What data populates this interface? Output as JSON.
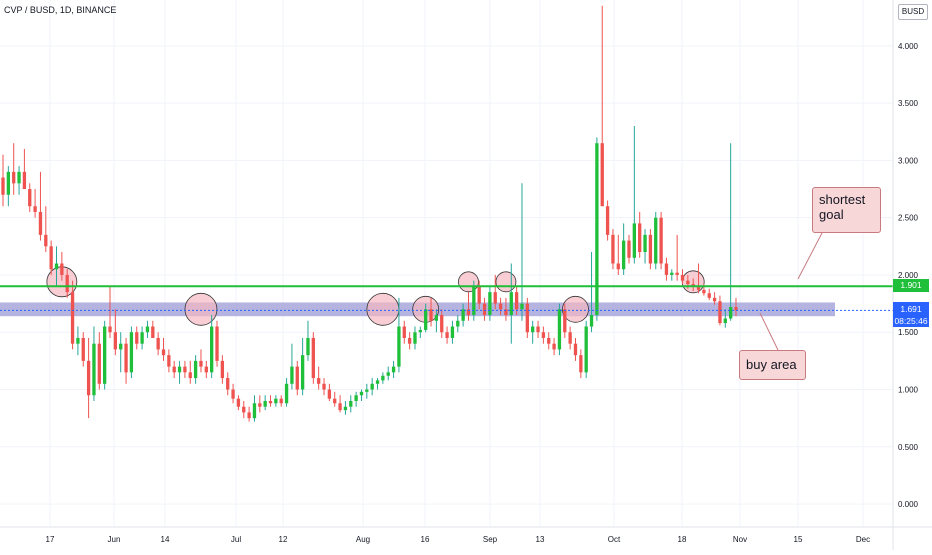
{
  "header": {
    "title": "CVP / BUSD, 1D, BINANCE",
    "currency": "BUSD"
  },
  "price_tags": {
    "resistance": "1.901",
    "last_price": "1.691",
    "countdown": "08:25:46"
  },
  "annotations": {
    "goal": "shortest\ngoal",
    "buy": "buy area"
  },
  "colors": {
    "up": "#26a69a",
    "up_body": "#1fbf3a",
    "down": "#ef5350",
    "resistance": "#1fbf3a",
    "zone": "#9c99d6",
    "circle_fill": "#f5b8c0",
    "callout": "#f8d7d9"
  },
  "chart_data": {
    "type": "candlestick",
    "title": "CVP / BUSD, 1D, BINANCE",
    "ylim": [
      -0.2,
      4.4
    ],
    "yticks": [
      "0.000",
      "0.500",
      "1.000",
      "1.500",
      "2.000",
      "2.500",
      "3.000",
      "3.500",
      "4.000"
    ],
    "xticks": [
      "17",
      "Jun",
      "14",
      "Jul",
      "12",
      "Aug",
      "16",
      "Sep",
      "13",
      "Oct",
      "18",
      "Nov",
      "15",
      "Dec"
    ],
    "resistance_level": 1.901,
    "buy_zone": [
      1.64,
      1.76
    ],
    "last_price": 1.691,
    "candles_ohlc": [
      [
        2.85,
        3.05,
        2.6,
        2.7
      ],
      [
        2.7,
        2.95,
        2.6,
        2.9
      ],
      [
        2.9,
        3.15,
        2.7,
        2.8
      ],
      [
        2.8,
        2.95,
        2.7,
        2.9
      ],
      [
        2.9,
        3.1,
        2.75,
        2.75
      ],
      [
        2.75,
        2.8,
        2.55,
        2.6
      ],
      [
        2.6,
        2.75,
        2.5,
        2.55
      ],
      [
        2.55,
        2.9,
        2.3,
        2.35
      ],
      [
        2.35,
        2.6,
        2.2,
        2.25
      ],
      [
        2.25,
        2.3,
        2.0,
        2.05
      ],
      [
        2.05,
        2.25,
        1.9,
        2.1
      ],
      [
        2.1,
        2.2,
        1.95,
        2.0
      ],
      [
        2.0,
        2.05,
        1.8,
        1.85
      ],
      [
        1.85,
        1.95,
        1.35,
        1.4
      ],
      [
        1.4,
        1.55,
        1.3,
        1.45
      ],
      [
        1.45,
        1.5,
        1.2,
        1.25
      ],
      [
        1.25,
        1.45,
        0.75,
        0.95
      ],
      [
        0.95,
        1.55,
        0.9,
        1.4
      ],
      [
        1.4,
        1.5,
        1.0,
        1.05
      ],
      [
        1.05,
        1.6,
        1.0,
        1.55
      ],
      [
        1.55,
        1.9,
        1.45,
        1.5
      ],
      [
        1.5,
        1.7,
        1.3,
        1.35
      ],
      [
        1.35,
        1.5,
        1.15,
        1.4
      ],
      [
        1.4,
        1.45,
        1.05,
        1.15
      ],
      [
        1.15,
        1.55,
        1.1,
        1.5
      ],
      [
        1.5,
        1.55,
        1.35,
        1.4
      ],
      [
        1.4,
        1.55,
        1.35,
        1.5
      ],
      [
        1.5,
        1.6,
        1.45,
        1.55
      ],
      [
        1.55,
        1.6,
        1.45,
        1.45
      ],
      [
        1.45,
        1.5,
        1.3,
        1.35
      ],
      [
        1.35,
        1.45,
        1.25,
        1.3
      ],
      [
        1.3,
        1.35,
        1.15,
        1.2
      ],
      [
        1.2,
        1.25,
        1.1,
        1.15
      ],
      [
        1.15,
        1.25,
        1.05,
        1.2
      ],
      [
        1.2,
        1.25,
        1.1,
        1.15
      ],
      [
        1.15,
        1.25,
        1.05,
        1.1
      ],
      [
        1.1,
        1.3,
        1.05,
        1.25
      ],
      [
        1.25,
        1.35,
        1.15,
        1.2
      ],
      [
        1.2,
        1.25,
        1.1,
        1.15
      ],
      [
        1.15,
        1.65,
        1.1,
        1.55
      ],
      [
        1.55,
        1.6,
        1.2,
        1.25
      ],
      [
        1.25,
        1.3,
        1.05,
        1.1
      ],
      [
        1.1,
        1.15,
        0.95,
        1.0
      ],
      [
        1.0,
        1.05,
        0.88,
        0.92
      ],
      [
        0.92,
        0.95,
        0.82,
        0.85
      ],
      [
        0.85,
        0.9,
        0.75,
        0.8
      ],
      [
        0.8,
        0.85,
        0.72,
        0.75
      ],
      [
        0.75,
        0.95,
        0.72,
        0.88
      ],
      [
        0.88,
        0.95,
        0.8,
        0.85
      ],
      [
        0.85,
        0.95,
        0.82,
        0.9
      ],
      [
        0.9,
        0.95,
        0.85,
        0.88
      ],
      [
        0.88,
        0.95,
        0.85,
        0.92
      ],
      [
        0.92,
        0.95,
        0.85,
        0.88
      ],
      [
        0.88,
        1.1,
        0.85,
        1.05
      ],
      [
        1.05,
        1.4,
        1.0,
        1.2
      ],
      [
        1.2,
        1.25,
        0.95,
        1.0
      ],
      [
        1.0,
        1.45,
        0.95,
        1.3
      ],
      [
        1.3,
        1.6,
        1.25,
        1.45
      ],
      [
        1.45,
        1.5,
        1.05,
        1.1
      ],
      [
        1.1,
        1.2,
        1.0,
        1.05
      ],
      [
        1.05,
        1.1,
        0.95,
        1.0
      ],
      [
        1.0,
        1.05,
        0.9,
        0.92
      ],
      [
        0.92,
        0.98,
        0.85,
        0.88
      ],
      [
        0.88,
        0.95,
        0.8,
        0.82
      ],
      [
        0.82,
        0.9,
        0.78,
        0.85
      ],
      [
        0.85,
        0.95,
        0.8,
        0.9
      ],
      [
        0.9,
        0.98,
        0.85,
        0.95
      ],
      [
        0.95,
        1.0,
        0.9,
        0.98
      ],
      [
        0.98,
        1.05,
        0.92,
        1.0
      ],
      [
        1.0,
        1.1,
        0.95,
        1.05
      ],
      [
        1.05,
        1.1,
        1.0,
        1.08
      ],
      [
        1.08,
        1.15,
        1.05,
        1.12
      ],
      [
        1.12,
        1.2,
        1.08,
        1.15
      ],
      [
        1.15,
        1.25,
        1.1,
        1.2
      ],
      [
        1.2,
        1.8,
        1.15,
        1.55
      ],
      [
        1.55,
        1.6,
        1.4,
        1.45
      ],
      [
        1.45,
        1.5,
        1.35,
        1.4
      ],
      [
        1.4,
        1.55,
        1.35,
        1.5
      ],
      [
        1.5,
        1.55,
        1.45,
        1.52
      ],
      [
        1.52,
        1.75,
        1.5,
        1.7
      ],
      [
        1.7,
        1.8,
        1.55,
        1.6
      ],
      [
        1.6,
        1.7,
        1.5,
        1.65
      ],
      [
        1.65,
        1.7,
        1.45,
        1.5
      ],
      [
        1.5,
        1.55,
        1.4,
        1.45
      ],
      [
        1.45,
        1.6,
        1.4,
        1.55
      ],
      [
        1.55,
        1.65,
        1.5,
        1.6
      ],
      [
        1.6,
        1.75,
        1.55,
        1.7
      ],
      [
        1.7,
        1.85,
        1.6,
        1.65
      ],
      [
        1.65,
        1.95,
        1.6,
        1.9
      ],
      [
        1.9,
        1.95,
        1.7,
        1.75
      ],
      [
        1.75,
        1.8,
        1.6,
        1.65
      ],
      [
        1.65,
        1.9,
        1.6,
        1.85
      ],
      [
        1.85,
        2.0,
        1.7,
        1.75
      ],
      [
        1.75,
        1.8,
        1.65,
        1.7
      ],
      [
        1.7,
        1.8,
        1.6,
        1.65
      ],
      [
        1.65,
        2.1,
        1.4,
        1.85
      ],
      [
        1.85,
        1.9,
        1.65,
        1.7
      ],
      [
        1.7,
        2.8,
        1.6,
        1.75
      ],
      [
        1.75,
        1.8,
        1.45,
        1.5
      ],
      [
        1.5,
        1.6,
        1.4,
        1.55
      ],
      [
        1.55,
        1.6,
        1.45,
        1.5
      ],
      [
        1.5,
        1.55,
        1.4,
        1.45
      ],
      [
        1.45,
        1.5,
        1.35,
        1.4
      ],
      [
        1.4,
        1.45,
        1.3,
        1.35
      ],
      [
        1.35,
        1.75,
        1.3,
        1.7
      ],
      [
        1.7,
        1.75,
        1.45,
        1.5
      ],
      [
        1.5,
        1.55,
        1.35,
        1.4
      ],
      [
        1.4,
        1.45,
        1.25,
        1.3
      ],
      [
        1.3,
        1.35,
        1.1,
        1.15
      ],
      [
        1.15,
        1.6,
        1.1,
        1.55
      ],
      [
        1.55,
        2.2,
        1.5,
        1.65
      ],
      [
        1.65,
        3.2,
        1.6,
        3.15
      ],
      [
        3.15,
        4.35,
        2.6,
        2.6
      ],
      [
        2.6,
        2.65,
        2.3,
        2.35
      ],
      [
        2.35,
        2.4,
        2.05,
        2.1
      ],
      [
        2.1,
        2.35,
        2.0,
        2.05
      ],
      [
        2.05,
        2.45,
        2.0,
        2.3
      ],
      [
        2.3,
        2.35,
        2.1,
        2.15
      ],
      [
        2.15,
        3.3,
        2.1,
        2.45
      ],
      [
        2.45,
        2.55,
        2.15,
        2.2
      ],
      [
        2.2,
        2.4,
        2.1,
        2.35
      ],
      [
        2.35,
        2.4,
        2.05,
        2.1
      ],
      [
        2.1,
        2.55,
        2.05,
        2.5
      ],
      [
        2.5,
        2.55,
        2.05,
        2.1
      ],
      [
        2.1,
        2.15,
        1.95,
        2.0
      ],
      [
        2.0,
        2.05,
        1.95,
        2.02
      ],
      [
        2.02,
        2.35,
        1.95,
        2.0
      ],
      [
        2.0,
        2.05,
        1.92,
        1.95
      ],
      [
        1.95,
        2.0,
        1.88,
        1.92
      ],
      [
        1.92,
        1.97,
        1.86,
        1.9
      ],
      [
        1.9,
        2.1,
        1.84,
        1.87
      ],
      [
        1.87,
        1.92,
        1.82,
        1.84
      ],
      [
        1.84,
        1.88,
        1.78,
        1.8
      ],
      [
        1.8,
        1.85,
        1.74,
        1.77
      ],
      [
        1.77,
        1.82,
        1.56,
        1.58
      ],
      [
        1.58,
        1.7,
        1.54,
        1.62
      ],
      [
        1.62,
        3.15,
        1.6,
        1.72
      ],
      [
        1.72,
        1.8,
        1.64,
        1.691
      ]
    ]
  }
}
